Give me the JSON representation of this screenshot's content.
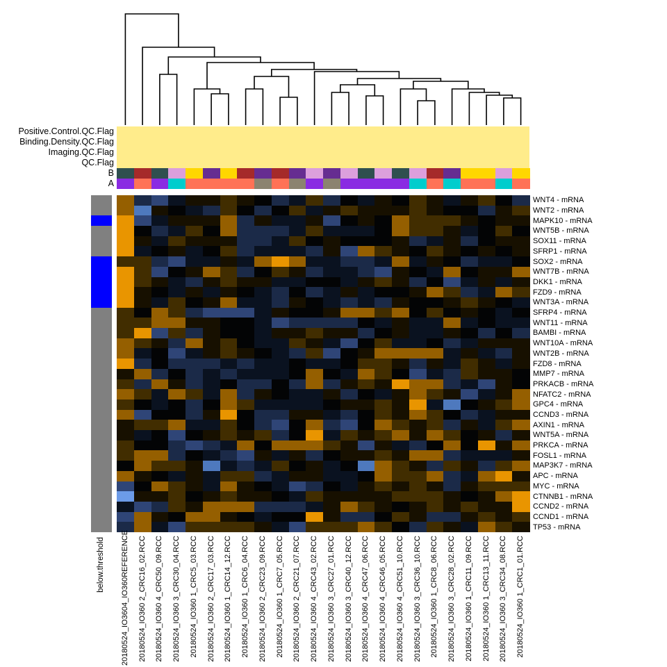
{
  "figure": {
    "background": "#FFFFFF"
  },
  "chart_data": {
    "type": "heatmap",
    "title": "",
    "rows": [
      "WNT4 - mRNA",
      "WNT2 - mRNA",
      "MAPK10 - mRNA",
      "WNT5B - mRNA",
      "SOX11 - mRNA",
      "SFRP1 - mRNA",
      "SOX2 - mRNA",
      "WNT7B - mRNA",
      "DKK1 - mRNA",
      "FZD9 - mRNA",
      "WNT3A - mRNA",
      "SFRP4 - mRNA",
      "WNT11 - mRNA",
      "BAMBI - mRNA",
      "WNT10A - mRNA",
      "WNT2B - mRNA",
      "FZD8 - mRNA",
      "MMP7 - mRNA",
      "PRKACB - mRNA",
      "NFATC2 - mRNA",
      "GPC4 - mRNA",
      "CCND3 - mRNA",
      "AXIN1 - mRNA",
      "WNT5A - mRNA",
      "PRKCA - mRNA",
      "FOSL1 - mRNA",
      "MAP3K7 - mRNA",
      "APC - mRNA",
      "MYC - mRNA",
      "CTNNB1 - mRNA",
      "CCND2 - mRNA",
      "CCND1 - mRNA",
      "TP53 - mRNA"
    ],
    "columns": [
      "20180524_IO3604_IO360REFERENCE",
      "20180524_IO360 2_CRC16_02.RCC",
      "20180524_IO360 4_CRC50_09.RCC",
      "20180524_IO360 3_CRC30_04.RCC",
      "20180524_IO360 1_CRC5_03.RCC",
      "20180524_IO360 2_CRC17_03.RCC",
      "20180524_IO360 1_CRC14_12.RCC",
      "20180524_IO360 1_CRC6_04.RCC",
      "20180524_IO360 2_CRC23_09.RCC",
      "20180524_IO360 1_CRC7_05.RCC",
      "20180524_IO360 2_CRC21_07.RCC",
      "20180524_IO360 4_CRC43_02.RCC",
      "20180524_IO360 3_CRC27_01.RCC",
      "20180524_IO360 3_CRC40_12.RCC",
      "20180524_IO360 4_CRC47_06.RCC",
      "20180524_IO360 4_CRC46_05.RCC",
      "20180524_IO360 4_CRC51_10.RCC",
      "20180524_IO360 3_CRC36_10.RCC",
      "20180524_IO360 1_CRC8_06.RCC",
      "20180524_IO360 3_CRC28_02.RCC",
      "20180524_IO360 1_CRC11_09.RCC",
      "20180524_IO360 1_CRC13_11.RCC",
      "20180524_IO360 3_CRC34_08.RCC",
      "20180524_IO360 1_CRC1_01.RCC"
    ],
    "palette": {
      "O": "#E99500",
      "o": "#955F00",
      "d": "#412D00",
      "e": "#171000",
      "k": "#030405",
      "n": "#0A1220",
      "b": "#1B2A48",
      "B": "#2F4577",
      "L": "#4E79BE",
      "W": "#6C9BE8"
    },
    "palette_legend": {
      "O": "high expression (bright orange)",
      "o": "medium-high (orange)",
      "d": "slightly high (dark orange-brown)",
      "e": "near zero (brown-black)",
      "k": "near zero (black)",
      "n": "slightly low (navy-black)",
      "b": "low (dark blue)",
      "B": "lower (medium blue)",
      "L": "much lower (light blue)",
      "W": "lowest (bright light blue)"
    },
    "cells": [
      "obBneedekbndbknekdenedkb",
      "oLeknbdkbkdnedeeedekkbed",
      "OBneeeobenneBkekodddekee",
      "Okbndkobbbndnnnkoddenkdk",
      "Oendeeebbndkekkkebnebkee",
      "OnkenkdbnnnbeBodekdekeke",
      "ddbBnnenoOonnbbnonekbnnk",
      "OdBkeodbkdebnnbBeknokeeo",
      "OdenbedeennkknedebkBnene",
      "Oekneneknbkbnenkkeodbnod",
      "Oendkeonnbeknbnbekkedekn",
      "dkodbBBBnekkeoodokdkeknk",
      "ddooeekknBbbbbknennonknn",
      "dOBdbekkneedeebkennekbkb",
      "odeboedknndenBkdnnkbneee",
      "onkBnedeknbdBkeoooonenbe",
      "Obkbbbnbnnknnkddebendene",
      "eobkbnbnnnkoknodkBnbdeek",
      "dboebnkbbkbobedeOoobnBek",
      "odnodnobeknnebkneodeBneo",
      "dknkbkodnnnnkeedeOnLkedo",
      "oBkkbeOkbbeenbkdeodkbnee",
      "eddonndkbBkobBkodedbendo",
      "enkBkededbkOndedoeodkebe",
      "dkkbBbnokooodeBenbkokOeo",
      "doobknbBenebkeedeoobnnne",
      "koddeLnbndkenkLodebdebdo",
      "oeknenddbneennkoddobnoOe",
      "BkodenoeknBbknededebeddd",
      "WeedkedeekndeeeedddekeoO",
      "nBbdeooobbbneodekededeeO",
      "BoekooeknkkOebbkdebbeded",
      "bonBddddenBdddodkbdenode"
    ]
  },
  "dendrogram": {
    "stroke": "#000000",
    "merges": [
      [
        180.4,
        180,
        256.9,
        68,
        20
      ],
      [
        205.1,
        180,
        308.6,
        82,
        68
      ],
      [
        242.3,
        107,
        375.0,
        90,
        82
      ],
      [
        229.9,
        180,
        254.6,
        180,
        107
      ],
      [
        298.0,
        128,
        452.1,
        100,
        90
      ],
      [
        279.4,
        180,
        316.5,
        135,
        128
      ],
      [
        304.1,
        180,
        328.9,
        180,
        135
      ],
      [
        390.8,
        110,
        513.5,
        103,
        100
      ],
      [
        366.0,
        128,
        415.5,
        140,
        110
      ],
      [
        353.6,
        180,
        378.4,
        180,
        128
      ],
      [
        403.1,
        180,
        427.9,
        180,
        140
      ],
      [
        452.6,
        180,
        574.4,
        113,
        103
      ],
      [
        514.5,
        122,
        634.4,
        117,
        113
      ],
      [
        489.8,
        133,
        539.3,
        138,
        122
      ],
      [
        477.4,
        180,
        502.1,
        180,
        133
      ],
      [
        526.9,
        180,
        551.6,
        180,
        138
      ],
      [
        594.9,
        128,
        673.8,
        128,
        117
      ],
      [
        576.4,
        180,
        613.5,
        145,
        128
      ],
      [
        601.1,
        180,
        625.9,
        180,
        145
      ],
      [
        650.6,
        180,
        697.0,
        133,
        128
      ],
      [
        675.4,
        180,
        718.7,
        137,
        133
      ],
      [
        700.1,
        180,
        737.3,
        141,
        137
      ],
      [
        724.9,
        180,
        749.6,
        180,
        141
      ]
    ]
  },
  "annotations": {
    "labels": [
      "Positive.Control.QC.Flag",
      "Binding.Density.QC.Flag",
      "Imaging.QC.Flag",
      "QC.Flag",
      "B",
      "A"
    ],
    "flag_color": "#FFEC8B",
    "b_palette": {
      "S": "#2F4F4F",
      "R": "#A52A2A",
      "P": "#DC9FDC",
      "G": "#FFD700",
      "D": "#662D91"
    },
    "b_row": "SRSPGDGRDRDPDPSPSPRDGGPG",
    "a_palette": {
      "U": "#8A2BE2",
      "L": "#FF7256",
      "C": "#00CDCD",
      "Y": "#8B8370"
    },
    "a_row": "ULUCLLLLYLYUYUUUUCLCLLCL"
  },
  "row_annotation": {
    "label": "below.threshold",
    "palette": {
      "g": "#808080",
      "b": "#0000FF"
    },
    "column": "ggbgggbbbbbgggggggggggggggggggggg"
  }
}
